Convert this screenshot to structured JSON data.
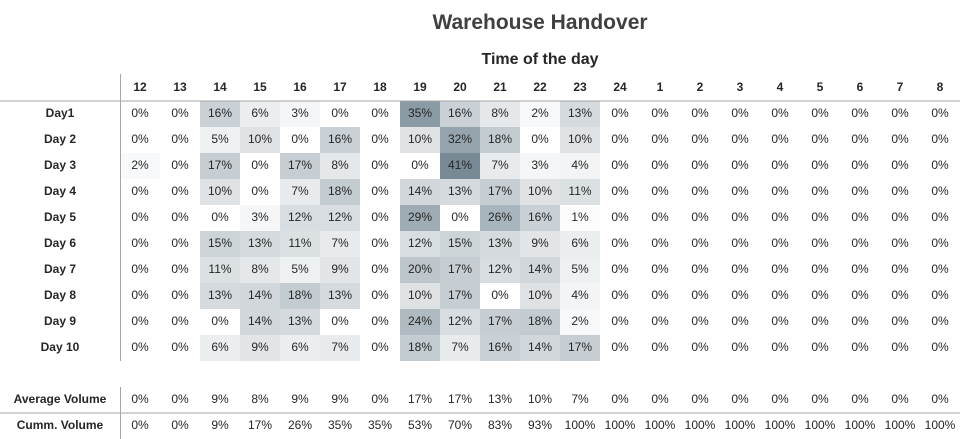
{
  "chart_data": {
    "type": "heatmap",
    "title": "Warehouse Handover",
    "subtitle": "Time of the day",
    "columns": [
      "12",
      "13",
      "14",
      "15",
      "16",
      "17",
      "18",
      "19",
      "20",
      "21",
      "22",
      "23",
      "24",
      "1",
      "2",
      "3",
      "4",
      "5",
      "6",
      "7",
      "8"
    ],
    "rows": [
      "Day1",
      "Day 2",
      "Day 3",
      "Day 4",
      "Day 5",
      "Day 6",
      "Day 7",
      "Day 8",
      "Day 9",
      "Day 10"
    ],
    "values": [
      [
        0,
        0,
        16,
        6,
        3,
        0,
        0,
        35,
        16,
        8,
        2,
        13,
        0,
        0,
        0,
        0,
        0,
        0,
        0,
        0,
        0
      ],
      [
        0,
        0,
        5,
        10,
        0,
        16,
        0,
        10,
        32,
        18,
        0,
        10,
        0,
        0,
        0,
        0,
        0,
        0,
        0,
        0,
        0
      ],
      [
        2,
        0,
        17,
        0,
        17,
        8,
        0,
        0,
        41,
        7,
        3,
        4,
        0,
        0,
        0,
        0,
        0,
        0,
        0,
        0,
        0
      ],
      [
        0,
        0,
        10,
        0,
        7,
        18,
        0,
        14,
        13,
        17,
        10,
        11,
        0,
        0,
        0,
        0,
        0,
        0,
        0,
        0,
        0
      ],
      [
        0,
        0,
        0,
        3,
        12,
        12,
        0,
        29,
        0,
        26,
        16,
        1,
        0,
        0,
        0,
        0,
        0,
        0,
        0,
        0,
        0
      ],
      [
        0,
        0,
        15,
        13,
        11,
        7,
        0,
        12,
        15,
        13,
        9,
        6,
        0,
        0,
        0,
        0,
        0,
        0,
        0,
        0,
        0
      ],
      [
        0,
        0,
        11,
        8,
        5,
        9,
        0,
        20,
        17,
        12,
        14,
        5,
        0,
        0,
        0,
        0,
        0,
        0,
        0,
        0,
        0
      ],
      [
        0,
        0,
        13,
        14,
        18,
        13,
        0,
        10,
        17,
        0,
        10,
        4,
        0,
        0,
        0,
        0,
        0,
        0,
        0,
        0,
        0
      ],
      [
        0,
        0,
        0,
        14,
        13,
        0,
        0,
        24,
        12,
        17,
        18,
        2,
        0,
        0,
        0,
        0,
        0,
        0,
        0,
        0,
        0
      ],
      [
        0,
        0,
        6,
        9,
        6,
        7,
        0,
        18,
        7,
        16,
        14,
        17,
        0,
        0,
        0,
        0,
        0,
        0,
        0,
        0,
        0
      ]
    ],
    "value_unit": "%",
    "summary_rows": [
      {
        "label": "Average Volume",
        "values": [
          0,
          0,
          9,
          8,
          9,
          9,
          0,
          17,
          17,
          13,
          10,
          7,
          0,
          0,
          0,
          0,
          0,
          0,
          0,
          0,
          0
        ]
      },
      {
        "label": "Cumm. Volume",
        "values": [
          0,
          0,
          9,
          17,
          26,
          35,
          35,
          53,
          70,
          83,
          93,
          100,
          100,
          100,
          100,
          100,
          100,
          100,
          100,
          100,
          100
        ]
      }
    ],
    "color_scale": {
      "low": "#ffffff",
      "high": "#778a95"
    }
  }
}
